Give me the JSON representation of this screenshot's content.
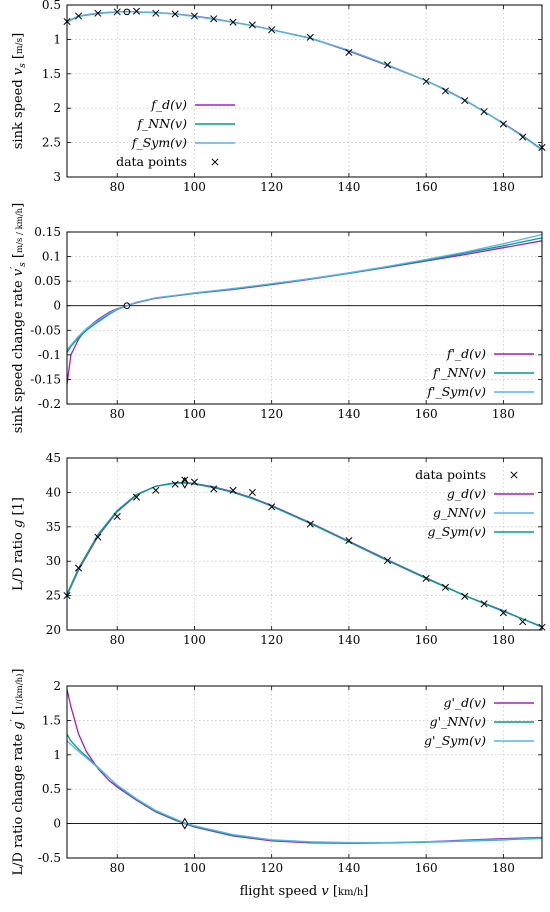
{
  "colors": {
    "magenta": "#a020c8",
    "teal": "#009e84",
    "sky": "#56b4e9"
  },
  "xaxis": {
    "label": "flight speed v [km/h]",
    "xlim": [
      67,
      190
    ],
    "ticks": [
      80,
      100,
      120,
      140,
      160,
      180
    ]
  },
  "chart_data": [
    {
      "type": "line",
      "ylabel": "sink speed v_s [m/s]",
      "ylim": [
        3,
        0.5
      ],
      "yticks": [
        0.5,
        1,
        1.5,
        2,
        2.5,
        3
      ],
      "ytick_labels": [
        "0.5",
        "1",
        "1.5",
        "2",
        "2.5",
        "3"
      ],
      "legend_position": "bottom-left",
      "legend": [
        "f_d(v)",
        "f_NN(v)",
        "f_Sym(v)",
        "data points"
      ],
      "series": [
        {
          "name": "f_d(v)",
          "color": "magenta",
          "x": [
            67,
            70,
            75,
            80,
            85,
            90,
            95,
            100,
            105,
            110,
            115,
            120,
            130,
            140,
            150,
            160,
            165,
            170,
            175,
            180,
            185,
            190
          ],
          "y": [
            0.74,
            0.66,
            0.62,
            0.6,
            0.6,
            0.61,
            0.63,
            0.66,
            0.7,
            0.75,
            0.8,
            0.86,
            0.98,
            1.17,
            1.38,
            1.6,
            1.73,
            1.88,
            2.05,
            2.22,
            2.4,
            2.6
          ]
        },
        {
          "name": "f_NN(v)",
          "color": "teal",
          "x": [
            67,
            70,
            75,
            80,
            85,
            90,
            95,
            100,
            105,
            110,
            115,
            120,
            130,
            140,
            150,
            160,
            165,
            170,
            175,
            180,
            185,
            190
          ],
          "y": [
            0.745,
            0.665,
            0.62,
            0.6,
            0.6,
            0.61,
            0.63,
            0.665,
            0.705,
            0.75,
            0.8,
            0.86,
            0.985,
            1.16,
            1.37,
            1.6,
            1.735,
            1.885,
            2.05,
            2.225,
            2.405,
            2.6
          ]
        },
        {
          "name": "f_Sym(v)",
          "color": "sky",
          "x": [
            67,
            70,
            75,
            80,
            85,
            90,
            95,
            100,
            105,
            110,
            115,
            120,
            130,
            140,
            150,
            160,
            165,
            170,
            175,
            180,
            185,
            190
          ],
          "y": [
            0.74,
            0.66,
            0.615,
            0.6,
            0.6,
            0.612,
            0.632,
            0.665,
            0.705,
            0.75,
            0.8,
            0.86,
            0.98,
            1.16,
            1.37,
            1.6,
            1.735,
            1.885,
            2.05,
            2.225,
            2.41,
            2.61
          ]
        }
      ],
      "points": {
        "name": "data points",
        "x": [
          67,
          70,
          75,
          80,
          85,
          90,
          95,
          100,
          105,
          110,
          115,
          120,
          130,
          140,
          150,
          160,
          165,
          170,
          175,
          180,
          185,
          190
        ],
        "y": [
          0.74,
          0.66,
          0.62,
          0.6,
          0.59,
          0.62,
          0.63,
          0.66,
          0.7,
          0.75,
          0.79,
          0.86,
          0.97,
          1.19,
          1.37,
          1.61,
          1.75,
          1.89,
          2.05,
          2.23,
          2.42,
          2.57
        ]
      },
      "optimum": {
        "x": 82.5,
        "y": 0.6
      }
    },
    {
      "type": "line",
      "ylabel": "sink speed change rate v_s' [m/s / km/h]",
      "ylim": [
        -0.2,
        0.15
      ],
      "yticks": [
        -0.2,
        -0.15,
        -0.1,
        -0.05,
        0,
        0.05,
        0.1,
        0.15
      ],
      "ytick_labels": [
        "-0.2",
        "-0.15",
        "-0.1",
        "-0.05",
        "0",
        "0.05",
        "0.1",
        "0.15"
      ],
      "legend_position": "bottom-right",
      "legend": [
        "f'_d(v)",
        "f'_NN(v)",
        "f'_Sym(v)"
      ],
      "series": [
        {
          "name": "f'_d(v)",
          "color": "magenta",
          "x": [
            67,
            68,
            70,
            72,
            75,
            78,
            80,
            82.5,
            85,
            90,
            100,
            110,
            120,
            130,
            140,
            150,
            160,
            170,
            180,
            190
          ],
          "y": [
            -0.16,
            -0.1,
            -0.068,
            -0.047,
            -0.028,
            -0.013,
            -0.006,
            0,
            0.006,
            0.015,
            0.025,
            0.033,
            0.043,
            0.054,
            0.066,
            0.078,
            0.091,
            0.104,
            0.118,
            0.132
          ]
        },
        {
          "name": "f'_NN(v)",
          "color": "teal",
          "x": [
            67,
            68,
            70,
            72,
            75,
            78,
            80,
            82.5,
            85,
            90,
            100,
            110,
            120,
            130,
            140,
            150,
            160,
            170,
            180,
            190
          ],
          "y": [
            -0.095,
            -0.083,
            -0.065,
            -0.05,
            -0.033,
            -0.017,
            -0.008,
            0,
            0.007,
            0.016,
            0.025,
            0.034,
            0.044,
            0.055,
            0.066,
            0.079,
            0.092,
            0.107,
            0.122,
            0.138
          ]
        },
        {
          "name": "f'_Sym(v)",
          "color": "sky",
          "x": [
            67,
            68,
            70,
            72,
            75,
            78,
            80,
            82.5,
            85,
            90,
            100,
            110,
            120,
            130,
            140,
            150,
            160,
            170,
            180,
            190
          ],
          "y": [
            -0.09,
            -0.08,
            -0.062,
            -0.047,
            -0.03,
            -0.015,
            -0.007,
            0,
            0.007,
            0.016,
            0.026,
            0.035,
            0.045,
            0.055,
            0.067,
            0.08,
            0.094,
            0.109,
            0.126,
            0.145
          ]
        }
      ],
      "optimum": {
        "x": 82.5,
        "y": 0
      }
    },
    {
      "type": "line",
      "ylabel": "L/D ratio g [1]",
      "ylim": [
        20,
        45
      ],
      "yticks": [
        20,
        25,
        30,
        35,
        40,
        45
      ],
      "ytick_labels": [
        "20",
        "25",
        "30",
        "35",
        "40",
        "45"
      ],
      "legend_position": "top-right",
      "legend": [
        "data points",
        "g_d(v)",
        "g_NN(v)",
        "g_Sym(v)"
      ],
      "series": [
        {
          "name": "g_d(v)",
          "color": "magenta",
          "x": [
            67,
            70,
            75,
            80,
            85,
            90,
            95,
            97.5,
            100,
            105,
            110,
            115,
            120,
            130,
            140,
            150,
            160,
            170,
            180,
            190
          ],
          "y": [
            25,
            28.7,
            33.6,
            37.2,
            39.6,
            40.9,
            41.4,
            41.45,
            41.3,
            40.8,
            40.1,
            39.2,
            38.1,
            35.6,
            32.9,
            30.2,
            27.6,
            25,
            22.8,
            20.4
          ]
        },
        {
          "name": "g_NN(v)",
          "color": "sky",
          "x": [
            67,
            70,
            75,
            80,
            85,
            90,
            95,
            97.5,
            100,
            105,
            110,
            115,
            120,
            130,
            140,
            150,
            160,
            170,
            180,
            190
          ],
          "y": [
            25.1,
            28.9,
            33.9,
            37.4,
            39.7,
            40.9,
            41.3,
            41.35,
            41.2,
            40.7,
            40,
            39.1,
            38,
            35.5,
            32.8,
            30.1,
            27.5,
            25,
            22.7,
            20.5
          ]
        },
        {
          "name": "g_Sym(v)",
          "color": "teal",
          "x": [
            67,
            70,
            75,
            80,
            85,
            90,
            95,
            97.5,
            100,
            105,
            110,
            115,
            120,
            130,
            140,
            150,
            160,
            170,
            180,
            190
          ],
          "y": [
            25.2,
            29,
            33.8,
            37.3,
            39.7,
            40.9,
            41.4,
            41.4,
            41.25,
            40.7,
            40,
            39.1,
            38,
            35.5,
            32.8,
            30.1,
            27.5,
            25,
            22.7,
            20.5
          ]
        }
      ],
      "points": {
        "name": "data points",
        "x": [
          67,
          70,
          75,
          80,
          85,
          90,
          95,
          97.5,
          100,
          105,
          110,
          115,
          120,
          130,
          140,
          150,
          160,
          165,
          170,
          175,
          180,
          185,
          190
        ],
        "y": [
          25,
          29,
          33.5,
          36.5,
          39.3,
          40.3,
          41.2,
          41.8,
          41.5,
          40.5,
          40.3,
          40,
          37.9,
          35.4,
          33,
          30.1,
          27.5,
          26.2,
          24.9,
          23.8,
          22.5,
          21.2,
          20.4
        ]
      },
      "optimum": {
        "x": 97.5,
        "y": 41.4
      }
    },
    {
      "type": "line",
      "ylabel": "L/D ratio change rate g' [1/(km/h)]",
      "ylim": [
        -0.5,
        2
      ],
      "yticks": [
        -0.5,
        0,
        0.5,
        1,
        1.5,
        2
      ],
      "ytick_labels": [
        "-0.5",
        "0",
        "0.5",
        "1",
        "1.5",
        "2"
      ],
      "legend_position": "top-right",
      "legend": [
        "g'_d(v)",
        "g'_NN(v)",
        "g'_Sym(v)"
      ],
      "series": [
        {
          "name": "g'_d(v)",
          "color": "magenta",
          "x": [
            67,
            68,
            70,
            72,
            75,
            78,
            80,
            85,
            90,
            95,
            97.5,
            100,
            110,
            120,
            130,
            140,
            150,
            160,
            170,
            180,
            190
          ],
          "y": [
            1.95,
            1.7,
            1.3,
            1.05,
            0.8,
            0.62,
            0.53,
            0.34,
            0.17,
            0.05,
            0,
            -0.05,
            -0.18,
            -0.25,
            -0.28,
            -0.285,
            -0.28,
            -0.265,
            -0.24,
            -0.22,
            -0.2
          ]
        },
        {
          "name": "g'_NN(v)",
          "color": "teal",
          "x": [
            67,
            68,
            70,
            72,
            75,
            78,
            80,
            85,
            90,
            95,
            97.5,
            100,
            110,
            120,
            130,
            140,
            150,
            160,
            170,
            180,
            190
          ],
          "y": [
            1.3,
            1.2,
            1.08,
            0.98,
            0.82,
            0.66,
            0.55,
            0.35,
            0.18,
            0.06,
            0,
            -0.04,
            -0.17,
            -0.24,
            -0.27,
            -0.28,
            -0.28,
            -0.27,
            -0.255,
            -0.235,
            -0.215
          ]
        },
        {
          "name": "g'_Sym(v)",
          "color": "sky",
          "x": [
            67,
            68,
            70,
            72,
            75,
            78,
            80,
            85,
            90,
            95,
            97.5,
            100,
            110,
            120,
            130,
            140,
            150,
            160,
            170,
            180,
            190
          ],
          "y": [
            1.2,
            1.15,
            1.05,
            0.96,
            0.81,
            0.66,
            0.56,
            0.36,
            0.19,
            0.07,
            0.01,
            -0.03,
            -0.16,
            -0.235,
            -0.265,
            -0.275,
            -0.275,
            -0.265,
            -0.25,
            -0.23,
            -0.21
          ]
        }
      ],
      "optimum": {
        "x": 97.5,
        "y": 0
      }
    }
  ]
}
